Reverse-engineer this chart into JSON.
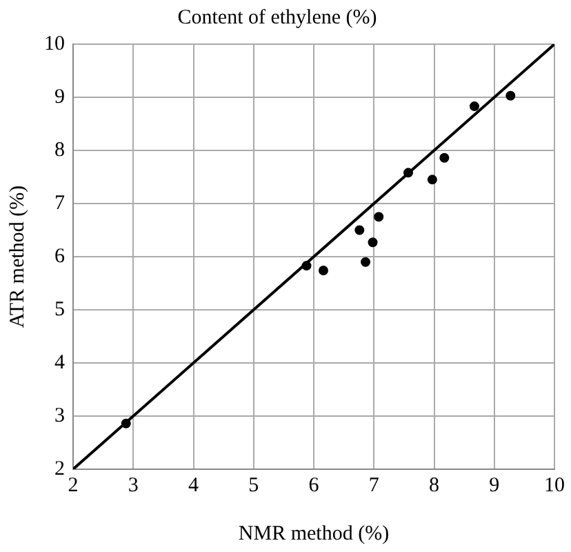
{
  "chart_data": {
    "type": "scatter",
    "title": "Content of ethylene (%)",
    "xlabel": "NMR method (%)",
    "ylabel": "ATR method (%)",
    "xlim": [
      2,
      10
    ],
    "ylim": [
      2,
      10
    ],
    "xticks": [
      2,
      3,
      4,
      5,
      6,
      7,
      8,
      9,
      10
    ],
    "yticks": [
      2,
      3,
      4,
      5,
      6,
      7,
      8,
      9,
      10
    ],
    "grid": true,
    "marker": "circle",
    "series": [
      {
        "type": "scatter",
        "color": "#000000",
        "x": [
          2.88,
          5.88,
          6.16,
          6.76,
          6.86,
          6.98,
          7.08,
          7.57,
          7.97,
          8.17,
          8.67,
          9.27
        ],
        "values": [
          2.86,
          5.83,
          5.74,
          6.5,
          5.9,
          6.27,
          6.75,
          7.58,
          7.45,
          7.86,
          8.83,
          9.03
        ]
      },
      {
        "type": "line",
        "color": "#000000",
        "x": [
          2,
          10
        ],
        "values": [
          2,
          10
        ],
        "line_style": "solid",
        "marker": "none"
      }
    ]
  }
}
